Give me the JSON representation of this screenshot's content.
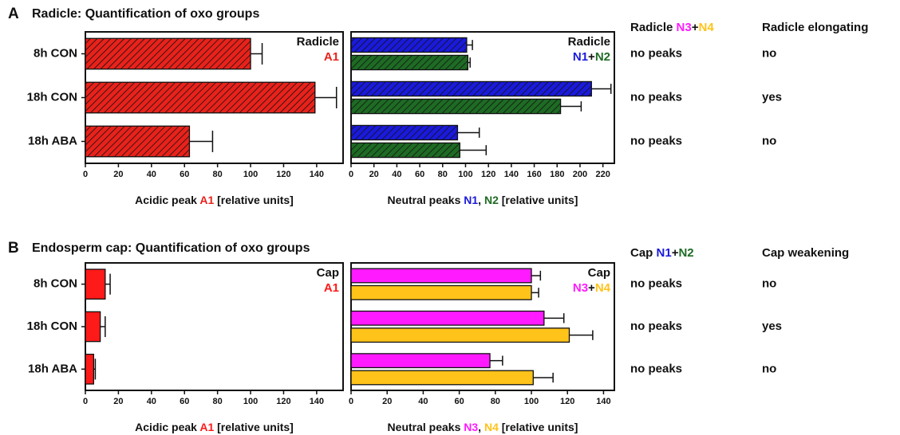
{
  "chart_data": [
    {
      "type": "bar",
      "orientation": "horizontal",
      "hatch": true,
      "categories": [
        "8h CON",
        "18h CON",
        "18h ABA"
      ],
      "legend_title": "Radicle",
      "series": [
        {
          "name": "A1",
          "color": "#e8221b",
          "values": [
            100,
            139,
            63
          ],
          "errors": [
            7,
            13,
            14
          ]
        }
      ],
      "xlabel": [
        {
          "text": "Acidic peak "
        },
        {
          "text": "A1",
          "color": "#e8221b"
        },
        {
          "text": " [relative units]"
        }
      ],
      "xlim": [
        0,
        156
      ],
      "xticks": [
        0,
        20,
        40,
        60,
        80,
        100,
        120,
        140
      ]
    },
    {
      "type": "bar",
      "orientation": "horizontal",
      "hatch": true,
      "legend_title": "Radicle",
      "legend_joiner": "+",
      "series": [
        {
          "name": "N1",
          "color": "#1a1adb",
          "values": [
            101,
            210,
            93
          ],
          "errors": [
            5,
            17,
            19
          ]
        },
        {
          "name": "N2",
          "color": "#1e6b24",
          "values": [
            102,
            183,
            95
          ],
          "errors": [
            2,
            18,
            23
          ]
        }
      ],
      "xlabel": [
        {
          "text": "Neutral peaks "
        },
        {
          "text": "N1",
          "color": "#1a1adb"
        },
        {
          "text": ", "
        },
        {
          "text": "N2",
          "color": "#1e6b24"
        },
        {
          "text": " [relative units]"
        }
      ],
      "xlim": [
        0,
        230
      ],
      "xticks": [
        0,
        20,
        40,
        60,
        80,
        100,
        120,
        140,
        160,
        180,
        200,
        220
      ]
    },
    {
      "type": "bar",
      "orientation": "horizontal",
      "hatch": false,
      "categories": [
        "8h CON",
        "18h CON",
        "18h ABA"
      ],
      "legend_title": "Cap",
      "series": [
        {
          "name": "A1",
          "color": "#ff1a1a",
          "values": [
            12,
            9,
            5
          ],
          "errors": [
            3,
            3,
            1
          ]
        }
      ],
      "xlabel": [
        {
          "text": "Acidic peak "
        },
        {
          "text": "A1",
          "color": "#ff1a1a"
        },
        {
          "text": " [relative units]"
        }
      ],
      "xlim": [
        0,
        156
      ],
      "xticks": [
        0,
        20,
        40,
        60,
        80,
        100,
        120,
        140
      ]
    },
    {
      "type": "bar",
      "orientation": "horizontal",
      "hatch": false,
      "legend_title": "Cap",
      "legend_joiner": "+",
      "series": [
        {
          "name": "N3",
          "color": "#ff1aff",
          "values": [
            100,
            107,
            77
          ],
          "errors": [
            5,
            11,
            7
          ]
        },
        {
          "name": "N4",
          "color": "#ffc31a",
          "values": [
            100,
            121,
            101
          ],
          "errors": [
            4,
            13,
            11
          ]
        }
      ],
      "xlabel": [
        {
          "text": "Neutral peaks "
        },
        {
          "text": "N3",
          "color": "#ff1aff"
        },
        {
          "text": ", "
        },
        {
          "text": "N4",
          "color": "#ffc31a"
        },
        {
          "text": " [relative units]"
        }
      ],
      "xlim": [
        0,
        146
      ],
      "xticks": [
        0,
        20,
        40,
        60,
        80,
        100,
        120,
        140
      ]
    }
  ],
  "panels": [
    {
      "letter": "A",
      "title": "Radicle: Quantification of oxo groups",
      "table": {
        "headers": [
          [
            {
              "text": "Radicle "
            },
            {
              "text": "N3",
              "color": "#ff1aff"
            },
            {
              "text": "+"
            },
            {
              "text": "N4",
              "color": "#ffc31a"
            }
          ],
          [
            {
              "text": "Radicle elongating"
            }
          ]
        ],
        "rows": [
          [
            "no peaks",
            "no"
          ],
          [
            "no peaks",
            "yes"
          ],
          [
            "no peaks",
            "no"
          ]
        ]
      }
    },
    {
      "letter": "B",
      "title": "Endosperm cap: Quantification of oxo groups",
      "table": {
        "headers": [
          [
            {
              "text": "Cap "
            },
            {
              "text": "N1",
              "color": "#1a1adb"
            },
            {
              "text": "+"
            },
            {
              "text": "N2",
              "color": "#1e6b24"
            }
          ],
          [
            {
              "text": "Cap weakening"
            }
          ]
        ],
        "rows": [
          [
            "no peaks",
            "no"
          ],
          [
            "no peaks",
            "yes"
          ],
          [
            "no peaks",
            "no"
          ]
        ]
      }
    }
  ]
}
